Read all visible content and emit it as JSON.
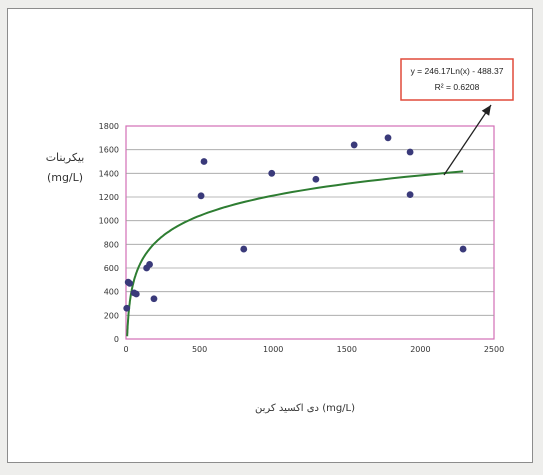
{
  "chart_data": {
    "type": "scatter",
    "title": "",
    "ylabel_line1": "بیکربنات",
    "ylabel_line2": "(mg/L)",
    "xlabel": "دی اکسید کربن (mg/L)",
    "xlim": [
      0,
      2500
    ],
    "ylim": [
      0,
      1800
    ],
    "xticks": [
      0,
      500,
      1000,
      1500,
      2000,
      2500
    ],
    "yticks": [
      0,
      200,
      400,
      600,
      800,
      1000,
      1200,
      1400,
      1600,
      1800
    ],
    "grid": "horizontal",
    "points": [
      {
        "x": 5,
        "y": 260
      },
      {
        "x": 15,
        "y": 480
      },
      {
        "x": 25,
        "y": 470
      },
      {
        "x": 55,
        "y": 390
      },
      {
        "x": 70,
        "y": 380
      },
      {
        "x": 140,
        "y": 600
      },
      {
        "x": 160,
        "y": 630
      },
      {
        "x": 190,
        "y": 340
      },
      {
        "x": 510,
        "y": 1210
      },
      {
        "x": 530,
        "y": 1500
      },
      {
        "x": 800,
        "y": 760
      },
      {
        "x": 990,
        "y": 1400
      },
      {
        "x": 1290,
        "y": 1350
      },
      {
        "x": 1550,
        "y": 1640
      },
      {
        "x": 1780,
        "y": 1700
      },
      {
        "x": 1930,
        "y": 1580
      },
      {
        "x": 1930,
        "y": 1220
      },
      {
        "x": 2290,
        "y": 760
      }
    ],
    "trendline": {
      "type": "logarithmic",
      "a": 246.17,
      "b": -488.37,
      "equation": "y = 246.17Ln(x) - 488.37",
      "r2_label": "R² = 0.6208"
    },
    "colors": {
      "plot_border": "#d36fb6",
      "gridline": "#a0a0a0",
      "points": "#3a3a7a",
      "trendline": "#2e7d32",
      "eq_box_border": "#e04a3a",
      "arrow": "#222222"
    }
  }
}
